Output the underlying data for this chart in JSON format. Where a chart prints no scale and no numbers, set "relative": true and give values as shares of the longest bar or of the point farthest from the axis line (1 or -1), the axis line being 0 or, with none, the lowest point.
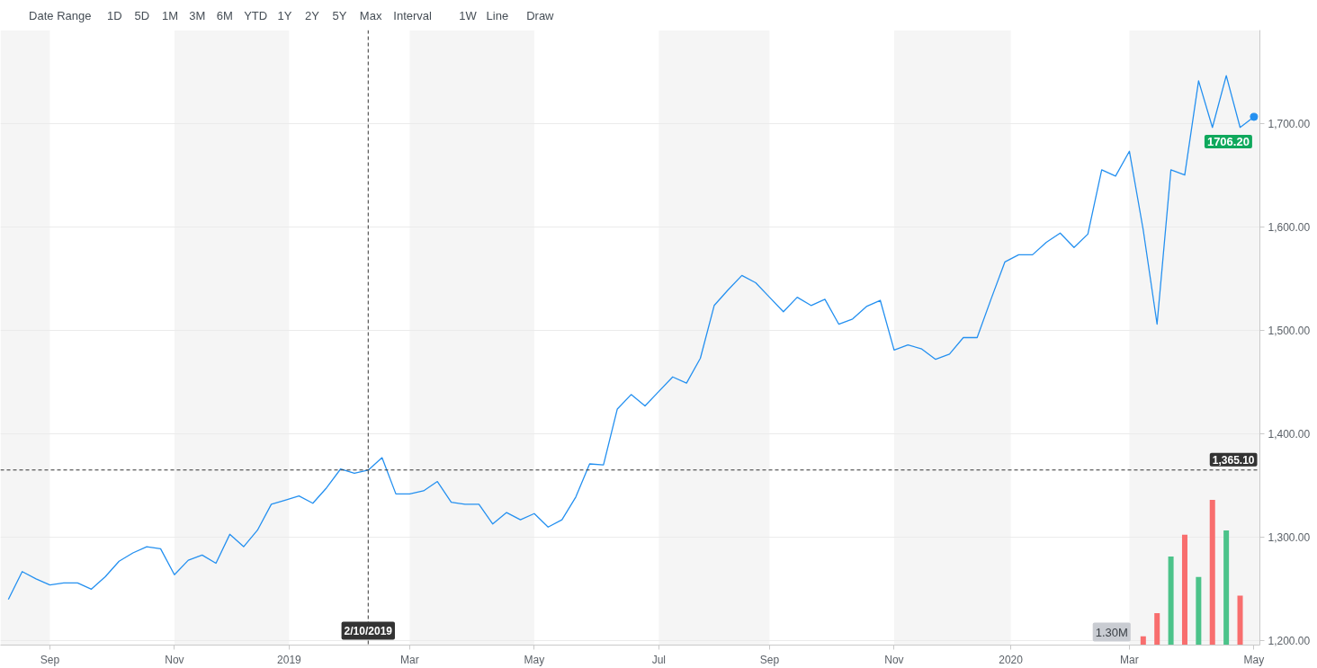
{
  "chart_data": [
    {
      "type": "line",
      "annotations": [
        "Date Range",
        "1D",
        "5D",
        "1M",
        "3M",
        "6M",
        "YTD",
        "1Y",
        "2Y",
        "5Y",
        "Max",
        "Interval",
        "1W",
        "Line",
        "Draw"
      ],
      "x": [
        "2018-08-12",
        "2018-08-19",
        "2018-08-26",
        "2018-09-02",
        "2018-09-09",
        "2018-09-16",
        "2018-09-23",
        "2018-09-30",
        "2018-10-07",
        "2018-10-14",
        "2018-10-21",
        "2018-10-28",
        "2018-11-04",
        "2018-11-11",
        "2018-11-18",
        "2018-11-25",
        "2018-12-02",
        "2018-12-09",
        "2018-12-16",
        "2018-12-23",
        "2018-12-30",
        "2019-01-06",
        "2019-01-13",
        "2019-01-20",
        "2019-01-27",
        "2019-02-03",
        "2019-02-10",
        "2019-02-17",
        "2019-02-24",
        "2019-03-03",
        "2019-03-10",
        "2019-03-17",
        "2019-03-24",
        "2019-03-31",
        "2019-04-07",
        "2019-04-14",
        "2019-04-21",
        "2019-04-28",
        "2019-05-05",
        "2019-05-12",
        "2019-05-19",
        "2019-05-26",
        "2019-06-02",
        "2019-06-09",
        "2019-06-16",
        "2019-06-23",
        "2019-06-30",
        "2019-07-07",
        "2019-07-14",
        "2019-07-21",
        "2019-07-28",
        "2019-08-04",
        "2019-08-11",
        "2019-08-18",
        "2019-08-25",
        "2019-09-01",
        "2019-09-08",
        "2019-09-15",
        "2019-09-22",
        "2019-09-29",
        "2019-10-06",
        "2019-10-13",
        "2019-10-20",
        "2019-10-27",
        "2019-11-03",
        "2019-11-10",
        "2019-11-17",
        "2019-11-24",
        "2019-12-01",
        "2019-12-08",
        "2019-12-15",
        "2019-12-22",
        "2019-12-29",
        "2020-01-05",
        "2020-01-12",
        "2020-01-19",
        "2020-01-26",
        "2020-02-02",
        "2020-02-09",
        "2020-02-16",
        "2020-02-23",
        "2020-03-01",
        "2020-03-08",
        "2020-03-15",
        "2020-03-22",
        "2020-03-29",
        "2020-04-05",
        "2020-04-12",
        "2020-04-19",
        "2020-04-26",
        "2020-05-03"
      ],
      "series": [
        {
          "color": "#2490f0",
          "values": [
            1240,
            1267,
            1260,
            1254,
            1256,
            1256,
            1250,
            1262,
            1277,
            1285,
            1291,
            1289,
            1264,
            1278,
            1283,
            1275,
            1303,
            1291,
            1307,
            1332,
            1336,
            1340,
            1333,
            1348,
            1366,
            1362,
            1365,
            1377,
            1342,
            1342,
            1345,
            1354,
            1334,
            1332,
            1332,
            1313,
            1324,
            1317,
            1323,
            1310,
            1317,
            1339,
            1371,
            1370,
            1424,
            1438,
            1427,
            1441,
            1455,
            1449,
            1473,
            1524,
            1539,
            1553,
            1546,
            1532,
            1518,
            1532,
            1524,
            1530,
            1506,
            1511,
            1523,
            1529,
            1481,
            1486,
            1482,
            1472,
            1477,
            1493,
            1493,
            1530,
            1566,
            1573,
            1573,
            1585,
            1594,
            1580,
            1593,
            1655,
            1649,
            1673,
            1597,
            1506,
            1655,
            1650,
            1741,
            1696,
            1746,
            1696,
            1706.2
          ],
          "value_labels": [
            null,
            null,
            null,
            null,
            null,
            null,
            null,
            null,
            null,
            null,
            null,
            null,
            null,
            null,
            null,
            null,
            null,
            null,
            null,
            null,
            null,
            null,
            null,
            null,
            null,
            null,
            null,
            null,
            null,
            null,
            null,
            null,
            null,
            null,
            null,
            null,
            null,
            null,
            null,
            null,
            null,
            null,
            null,
            null,
            null,
            null,
            null,
            null,
            null,
            null,
            null,
            null,
            null,
            null,
            null,
            null,
            null,
            null,
            null,
            null,
            null,
            null,
            null,
            null,
            null,
            null,
            null,
            null,
            null,
            null,
            null,
            null,
            null,
            null,
            null,
            null,
            null,
            null,
            null,
            null,
            null,
            null,
            null,
            null,
            null,
            null,
            null,
            null,
            null,
            null,
            "1706.20"
          ]
        }
      ],
      "xlim": [
        "2018-08-08",
        "2020-05-06"
      ],
      "xticks": [
        {
          "value": "2018-09-02",
          "label": "Sep"
        },
        {
          "value": "2018-11-04",
          "label": "Nov"
        },
        {
          "value": "2019-01-01",
          "label": "2019"
        },
        {
          "value": "2019-03-03",
          "label": "Mar"
        },
        {
          "value": "2019-05-05",
          "label": "May"
        },
        {
          "value": "2019-07-07",
          "label": "Jul"
        },
        {
          "value": "2019-09-01",
          "label": "Sep"
        },
        {
          "value": "2019-11-03",
          "label": "Nov"
        },
        {
          "value": "2020-01-01",
          "label": "2020"
        },
        {
          "value": "2020-03-01",
          "label": "Mar"
        },
        {
          "value": "2020-05-03",
          "label": "May"
        }
      ],
      "ylim": [
        1196,
        1790
      ],
      "yticks": [
        {
          "value": 1200,
          "label": "1,200.00"
        },
        {
          "value": 1300,
          "label": "1,300.00"
        },
        {
          "value": 1400,
          "label": "1,400.00"
        },
        {
          "value": 1500,
          "label": "1,500.00"
        },
        {
          "value": 1600,
          "label": "1,600.00"
        },
        {
          "value": 1700,
          "label": "1,700.00"
        }
      ],
      "grid": "y",
      "ref_lines": [
        {
          "axis": "x",
          "value": "2019-02-10",
          "label": "2/10/2019",
          "color": "#333333",
          "line_style": "dashed"
        },
        {
          "axis": "y",
          "value": 1365.1,
          "label": "1,365.10",
          "color": "#333333",
          "line_style": "dashed"
        }
      ],
      "bands": [
        {
          "axis": "x",
          "from": "2018-08-08",
          "to": "2018-09-02",
          "color": "#f5f5f5"
        },
        {
          "axis": "x",
          "from": "2018-11-04",
          "to": "2019-01-01",
          "color": "#f5f5f5"
        },
        {
          "axis": "x",
          "from": "2019-03-03",
          "to": "2019-05-05",
          "color": "#f5f5f5"
        },
        {
          "axis": "x",
          "from": "2019-07-07",
          "to": "2019-09-01",
          "color": "#f5f5f5"
        },
        {
          "axis": "x",
          "from": "2019-11-03",
          "to": "2020-01-01",
          "color": "#f5f5f5"
        },
        {
          "axis": "x",
          "from": "2020-03-01",
          "to": "2020-05-06",
          "color": "#f5f5f5"
        }
      ]
    },
    {
      "type": "bar",
      "relative": true,
      "tick_labels": false,
      "x": [
        "2020-03-08",
        "2020-03-15",
        "2020-03-22",
        "2020-03-29",
        "2020-04-05",
        "2020-04-12",
        "2020-04-19",
        "2020-04-26"
      ],
      "values": [
        0.06,
        0.22,
        0.61,
        0.76,
        0.47,
        1,
        0.79,
        0.34
      ],
      "colors": [
        "#f86e6e",
        "#f86e6e",
        "#4cc38a",
        "#f86e6e",
        "#4cc38a",
        "#f86e6e",
        "#4cc38a",
        "#f86e6e"
      ],
      "xlim": [
        "2018-08-08",
        "2020-05-06"
      ],
      "annotations": [
        "1.30M"
      ]
    }
  ]
}
